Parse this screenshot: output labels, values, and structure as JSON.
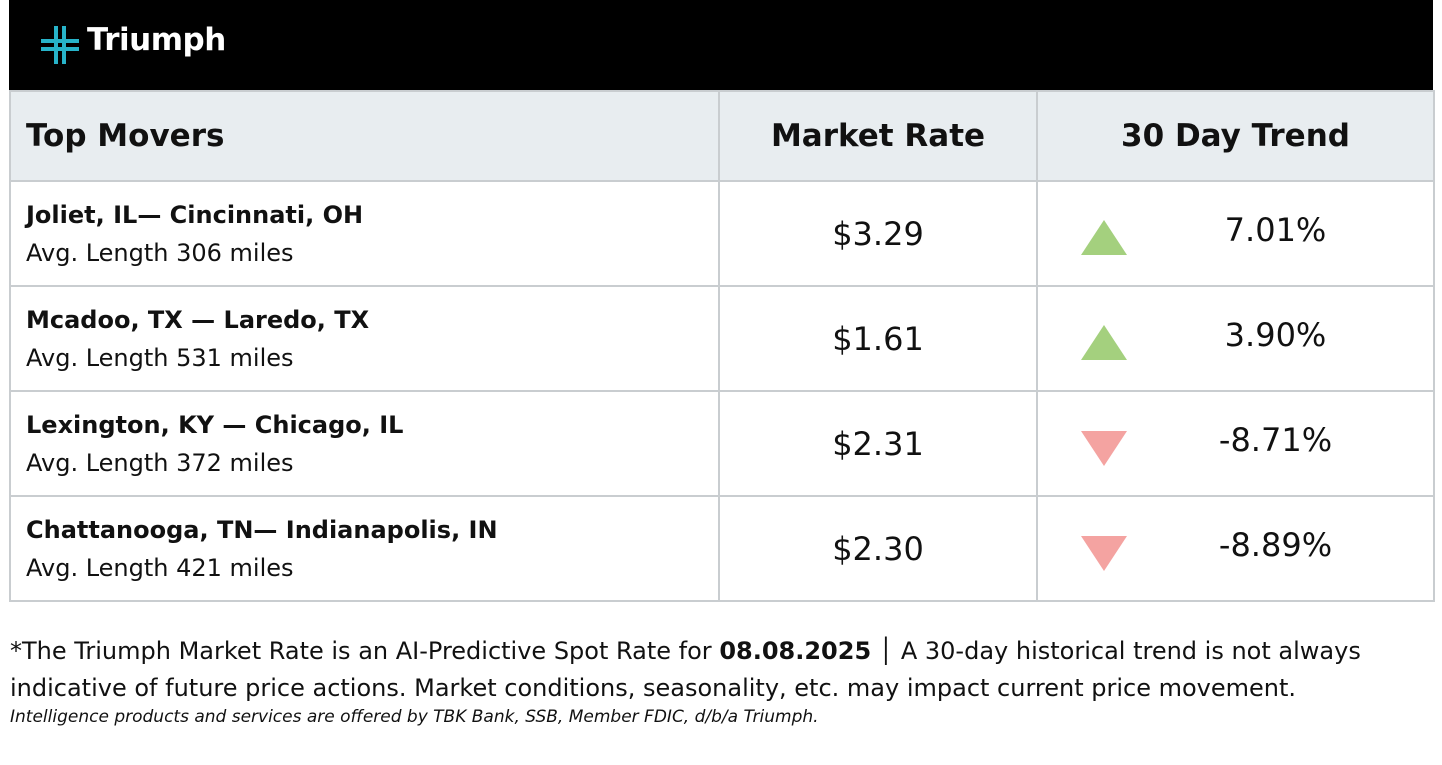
{
  "header": {
    "brand": "Triumph"
  },
  "table": {
    "headers": [
      "Top Movers",
      "Market Rate",
      "30 Day Trend"
    ],
    "rows": [
      {
        "route": "Joliet, IL— Cincinnati, OH",
        "length": "Avg. Length 306 miles",
        "rate": "$3.29",
        "trend": "7.01%"
      },
      {
        "route": "Mcadoo, TX — Laredo, TX",
        "length": "Avg. Length 531 miles",
        "rate": "$1.61",
        "trend": "3.90%"
      },
      {
        "route": "Lexington, KY — Chicago, IL",
        "length": "Avg. Length 372 miles",
        "rate": "$2.31",
        "trend": "-8.71%"
      },
      {
        "route": "Chattanooga, TN— Indianapolis, IN",
        "length": "Avg. Length 421 miles",
        "rate": "$2.30",
        "trend": "-8.89%"
      }
    ]
  },
  "footnote": {
    "before": "*The Triumph Market Rate is an AI-Predictive Spot Rate for ",
    "date": "08.08.2025",
    "after": " │ A 30-day historical trend is not always indicative of future price actions. Market conditions, seasonality, etc. may impact current price movement."
  },
  "disclaimer": "Intelligence products and services are offered by TBK Bank, SSB, Member FDIC, d/b/a Triumph."
}
